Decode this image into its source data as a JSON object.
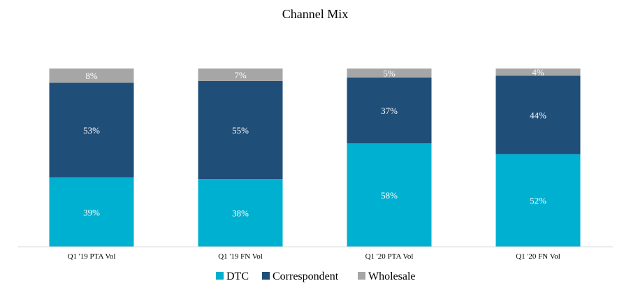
{
  "chart_data": {
    "type": "bar",
    "stacked": true,
    "title": "Channel Mix",
    "categories": [
      "Q1 '19 PTA Vol",
      "Q1 '19 FN  Vol",
      "Q1 '20 PTA Vol",
      "Q1 '20 FN  Vol"
    ],
    "series": [
      {
        "name": "DTC",
        "values": [
          39,
          38,
          58,
          52
        ],
        "color": "#00B0D0"
      },
      {
        "name": "Correspondent",
        "values": [
          53,
          55,
          37,
          44
        ],
        "color": "#1F4E79"
      },
      {
        "name": "Wholesale",
        "values": [
          8,
          7,
          5,
          4
        ],
        "color": "#A6A6A6"
      }
    ],
    "value_suffix": "%",
    "ylim": [
      0,
      100
    ],
    "legend_position": "bottom",
    "grid": false
  }
}
